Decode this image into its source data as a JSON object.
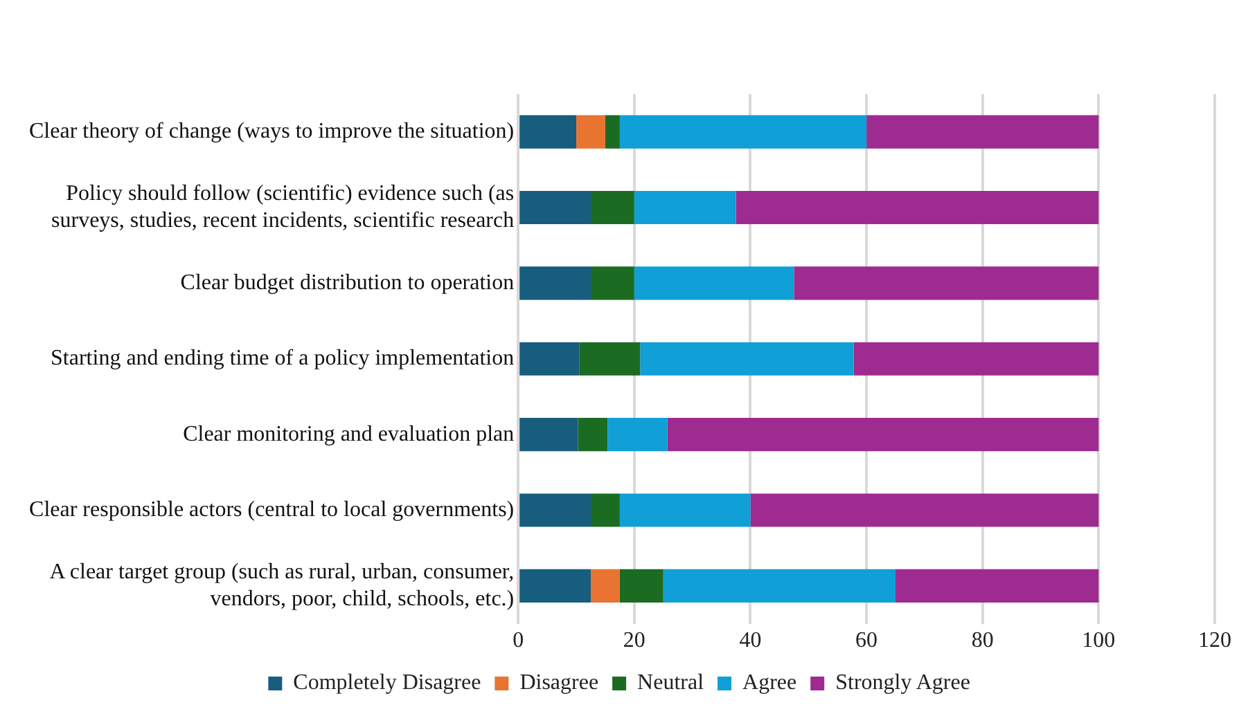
{
  "chart_data": {
    "type": "bar",
    "orientation": "horizontal",
    "stacked": true,
    "categories": [
      "Clear theory of change (ways to improve the situation)",
      "Policy should follow (scientific) evidence such (as surveys, studies, recent incidents, scientific research",
      "Clear budget distribution to operation",
      "Starting and ending time of a policy implementation",
      "Clear monitoring and evaluation plan",
      "Clear responsible actors (central to local governments)",
      "A clear target group (such as rural, urban, consumer, vendors, poor, child, schools, etc.)"
    ],
    "series": [
      {
        "name": "Completely Disagree",
        "color": "#175d7e",
        "values": [
          10,
          12.5,
          12.5,
          10.5,
          10.3,
          12.5,
          12.5
        ]
      },
      {
        "name": "Disagree",
        "color": "#e97432",
        "values": [
          5,
          0,
          0,
          0,
          0,
          0,
          5
        ]
      },
      {
        "name": "Neutral",
        "color": "#1c6b23",
        "values": [
          2.5,
          7.5,
          7.5,
          10.5,
          5.1,
          5,
          7.5
        ]
      },
      {
        "name": "Agree",
        "color": "#109fd6",
        "values": [
          42.5,
          17.5,
          27.5,
          36.8,
          10.3,
          22.5,
          40
        ]
      },
      {
        "name": "Strongly Agree",
        "color": "#9e2b90",
        "values": [
          40,
          62.5,
          52.5,
          42.2,
          74.3,
          60,
          35
        ]
      }
    ],
    "xlim": [
      0,
      120
    ],
    "xticks": [
      0,
      20,
      40,
      60,
      80,
      100,
      120
    ],
    "grid": "x",
    "legend": "bottom"
  }
}
